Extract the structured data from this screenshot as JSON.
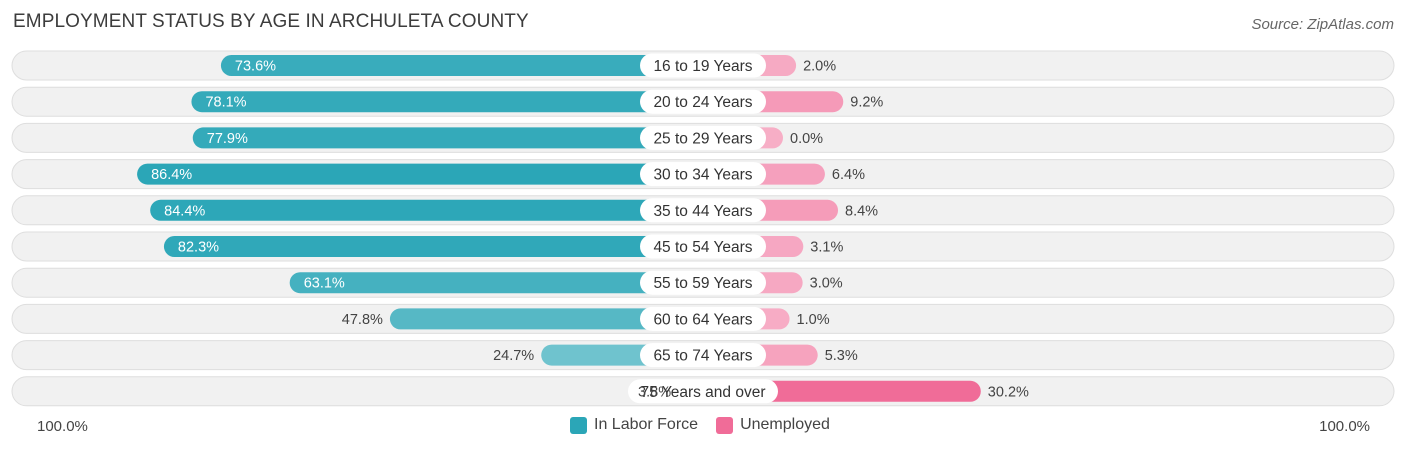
{
  "chart_data": {
    "type": "bar",
    "orientation": "diverging-horizontal",
    "title": "EMPLOYMENT STATUS BY AGE IN ARCHULETA COUNTY",
    "source": "Source: ZipAtlas.com",
    "categories": [
      "16 to 19 Years",
      "20 to 24 Years",
      "25 to 29 Years",
      "30 to 34 Years",
      "35 to 44 Years",
      "45 to 54 Years",
      "55 to 59 Years",
      "60 to 64 Years",
      "65 to 74 Years",
      "75 Years and over"
    ],
    "series": [
      {
        "name": "In Labor Force",
        "color": "#2ba6b7",
        "values": [
          73.6,
          78.1,
          77.9,
          86.4,
          84.4,
          82.3,
          63.1,
          47.8,
          24.7,
          3.8
        ],
        "labels": [
          "73.6%",
          "78.1%",
          "77.9%",
          "86.4%",
          "84.4%",
          "82.3%",
          "63.1%",
          "47.8%",
          "24.7%",
          "3.8%"
        ]
      },
      {
        "name": "Unemployed",
        "color": "#f06c98",
        "values": [
          2.0,
          9.2,
          0.0,
          6.4,
          8.4,
          3.1,
          3.0,
          1.0,
          5.3,
          30.2
        ],
        "labels": [
          "2.0%",
          "9.2%",
          "0.0%",
          "6.4%",
          "8.4%",
          "3.1%",
          "3.0%",
          "1.0%",
          "5.3%",
          "30.2%"
        ]
      }
    ],
    "xlim": [
      -100,
      100
    ],
    "axis_labels": {
      "left": "100.0%",
      "right": "100.0%"
    },
    "legend_position": "bottom-center"
  }
}
